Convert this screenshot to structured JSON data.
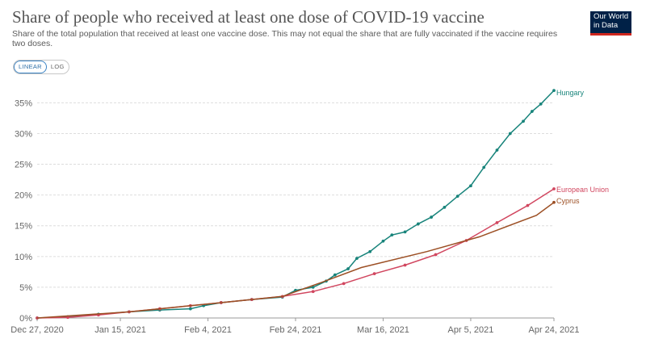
{
  "header": {
    "title": "Share of people who received at least one dose of COVID-19 vaccine",
    "subtitle": "Share of the total population that received at least one vaccine dose. This may not equal the share that are fully vaccinated if the vaccine requires two doses."
  },
  "logo": {
    "line1": "Our World",
    "line2": "in Data"
  },
  "toggle": {
    "linear": "LINEAR",
    "log": "LOG",
    "selected": "linear"
  },
  "colors": {
    "hungary": "#18847b",
    "eu": "#d1465f",
    "cyprus": "#9c4f24",
    "grid": "#dddddd",
    "axis": "#999999"
  },
  "chart_data": {
    "type": "line",
    "x_axis": {
      "start": "2020-12-27",
      "end": "2021-04-24",
      "tick_labels": [
        "Dec 27, 2020",
        "Jan 15, 2021",
        "Feb 4, 2021",
        "Feb 24, 2021",
        "Mar 16, 2021",
        "Apr 5, 2021",
        "Apr 24, 2021"
      ],
      "tick_dates": [
        "2020-12-27",
        "2021-01-15",
        "2021-02-04",
        "2021-02-24",
        "2021-03-16",
        "2021-04-05",
        "2021-04-24"
      ]
    },
    "y_axis": {
      "min": 0,
      "max": 35,
      "ticks": [
        0,
        5,
        10,
        15,
        20,
        25,
        30,
        35
      ],
      "tick_labels": [
        "0%",
        "5%",
        "10%",
        "15%",
        "20%",
        "25%",
        "30%",
        "35%"
      ]
    },
    "grid": true,
    "series": [
      {
        "name": "Hungary",
        "color": "hungary",
        "markers": true,
        "points": [
          [
            "2020-12-27",
            0.0
          ],
          [
            "2021-01-03",
            0.2
          ],
          [
            "2021-01-10",
            0.6
          ],
          [
            "2021-01-17",
            1.0
          ],
          [
            "2021-01-24",
            1.3
          ],
          [
            "2021-01-31",
            1.5
          ],
          [
            "2021-02-03",
            2.0
          ],
          [
            "2021-02-07",
            2.5
          ],
          [
            "2021-02-14",
            3.0
          ],
          [
            "2021-02-21",
            3.4
          ],
          [
            "2021-02-24",
            4.5
          ],
          [
            "2021-02-28",
            5.0
          ],
          [
            "2021-03-03",
            6.0
          ],
          [
            "2021-03-05",
            7.0
          ],
          [
            "2021-03-08",
            8.0
          ],
          [
            "2021-03-10",
            9.7
          ],
          [
            "2021-03-13",
            10.8
          ],
          [
            "2021-03-16",
            12.5
          ],
          [
            "2021-03-18",
            13.5
          ],
          [
            "2021-03-21",
            14.0
          ],
          [
            "2021-03-24",
            15.3
          ],
          [
            "2021-03-27",
            16.4
          ],
          [
            "2021-03-30",
            18.0
          ],
          [
            "2021-04-02",
            19.8
          ],
          [
            "2021-04-05",
            21.5
          ],
          [
            "2021-04-08",
            24.5
          ],
          [
            "2021-04-11",
            27.3
          ],
          [
            "2021-04-14",
            30.0
          ],
          [
            "2021-04-17",
            32.0
          ],
          [
            "2021-04-19",
            33.6
          ],
          [
            "2021-04-21",
            34.8
          ],
          [
            "2021-04-24",
            37.0
          ]
        ]
      },
      {
        "name": "European Union",
        "color": "eu",
        "markers": true,
        "points": [
          [
            "2020-12-27",
            0.0
          ],
          [
            "2021-01-03",
            0.1
          ],
          [
            "2021-01-10",
            0.5
          ],
          [
            "2021-01-17",
            1.0
          ],
          [
            "2021-01-24",
            1.5
          ],
          [
            "2021-01-31",
            2.0
          ],
          [
            "2021-02-07",
            2.5
          ],
          [
            "2021-02-14",
            3.0
          ],
          [
            "2021-02-21",
            3.5
          ],
          [
            "2021-02-28",
            4.3
          ],
          [
            "2021-03-07",
            5.6
          ],
          [
            "2021-03-14",
            7.2
          ],
          [
            "2021-03-21",
            8.6
          ],
          [
            "2021-03-28",
            10.3
          ],
          [
            "2021-04-04",
            12.6
          ],
          [
            "2021-04-11",
            15.5
          ],
          [
            "2021-04-18",
            18.3
          ],
          [
            "2021-04-24",
            21.0
          ]
        ]
      },
      {
        "name": "Cyprus",
        "color": "cyprus",
        "markers": false,
        "points": [
          [
            "2020-12-27",
            0.0
          ],
          [
            "2021-01-17",
            1.0
          ],
          [
            "2021-02-07",
            2.5
          ],
          [
            "2021-02-21",
            3.5
          ],
          [
            "2021-03-02",
            5.8
          ],
          [
            "2021-03-11",
            8.2
          ],
          [
            "2021-03-26",
            10.8
          ],
          [
            "2021-04-07",
            13.2
          ],
          [
            "2021-04-20",
            16.7
          ],
          [
            "2021-04-24",
            18.8
          ]
        ]
      }
    ]
  }
}
